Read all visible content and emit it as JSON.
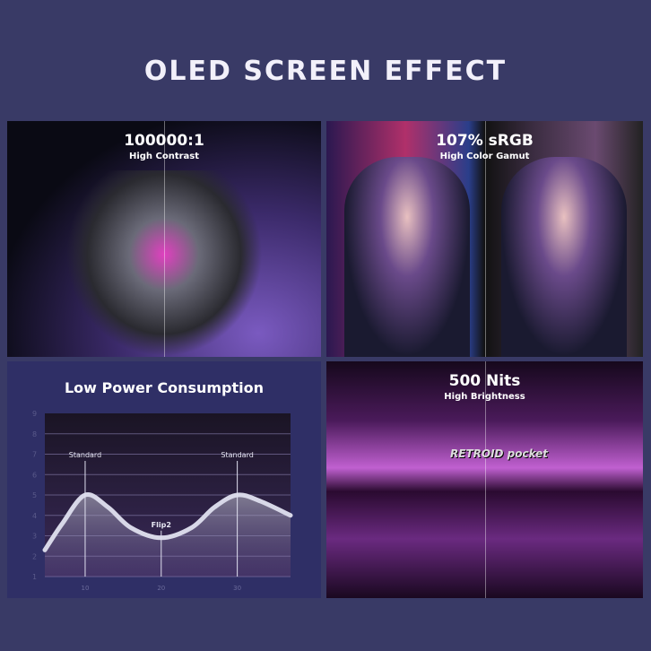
{
  "title": "OLED SCREEN EFFECT",
  "panels": {
    "contrast": {
      "headline": "100000:1",
      "sub": "High Contrast"
    },
    "color": {
      "headline": "107% sRGB",
      "sub": "High Color Gamut"
    },
    "power": {
      "headline": "Low Power Consumption"
    },
    "brightness": {
      "headline": "500 Nits",
      "sub": "High Brightness",
      "logo": "RETROID pocket"
    }
  },
  "chart_data": {
    "type": "area",
    "title": "Low Power Consumption",
    "x": [
      4.7,
      7,
      10,
      13,
      16,
      20,
      24,
      27,
      30,
      33,
      37
    ],
    "y": [
      2.3,
      3.6,
      5.0,
      4.4,
      3.4,
      2.9,
      3.4,
      4.4,
      5.0,
      4.7,
      4.0
    ],
    "xticks": [
      10,
      20,
      30
    ],
    "yticks": [
      1,
      2,
      3,
      4,
      5,
      6,
      7,
      8,
      9
    ],
    "xlim": [
      4.7,
      37
    ],
    "ylim": [
      1,
      9
    ],
    "grid": true,
    "annotations": [
      {
        "x": 10,
        "y": 5,
        "text": "Standard"
      },
      {
        "x": 20,
        "y": 2.9,
        "text": "Flip2"
      },
      {
        "x": 30,
        "y": 5,
        "text": "Standard"
      }
    ],
    "line_color": "#d8d8e8",
    "accent": "#a890f0"
  }
}
